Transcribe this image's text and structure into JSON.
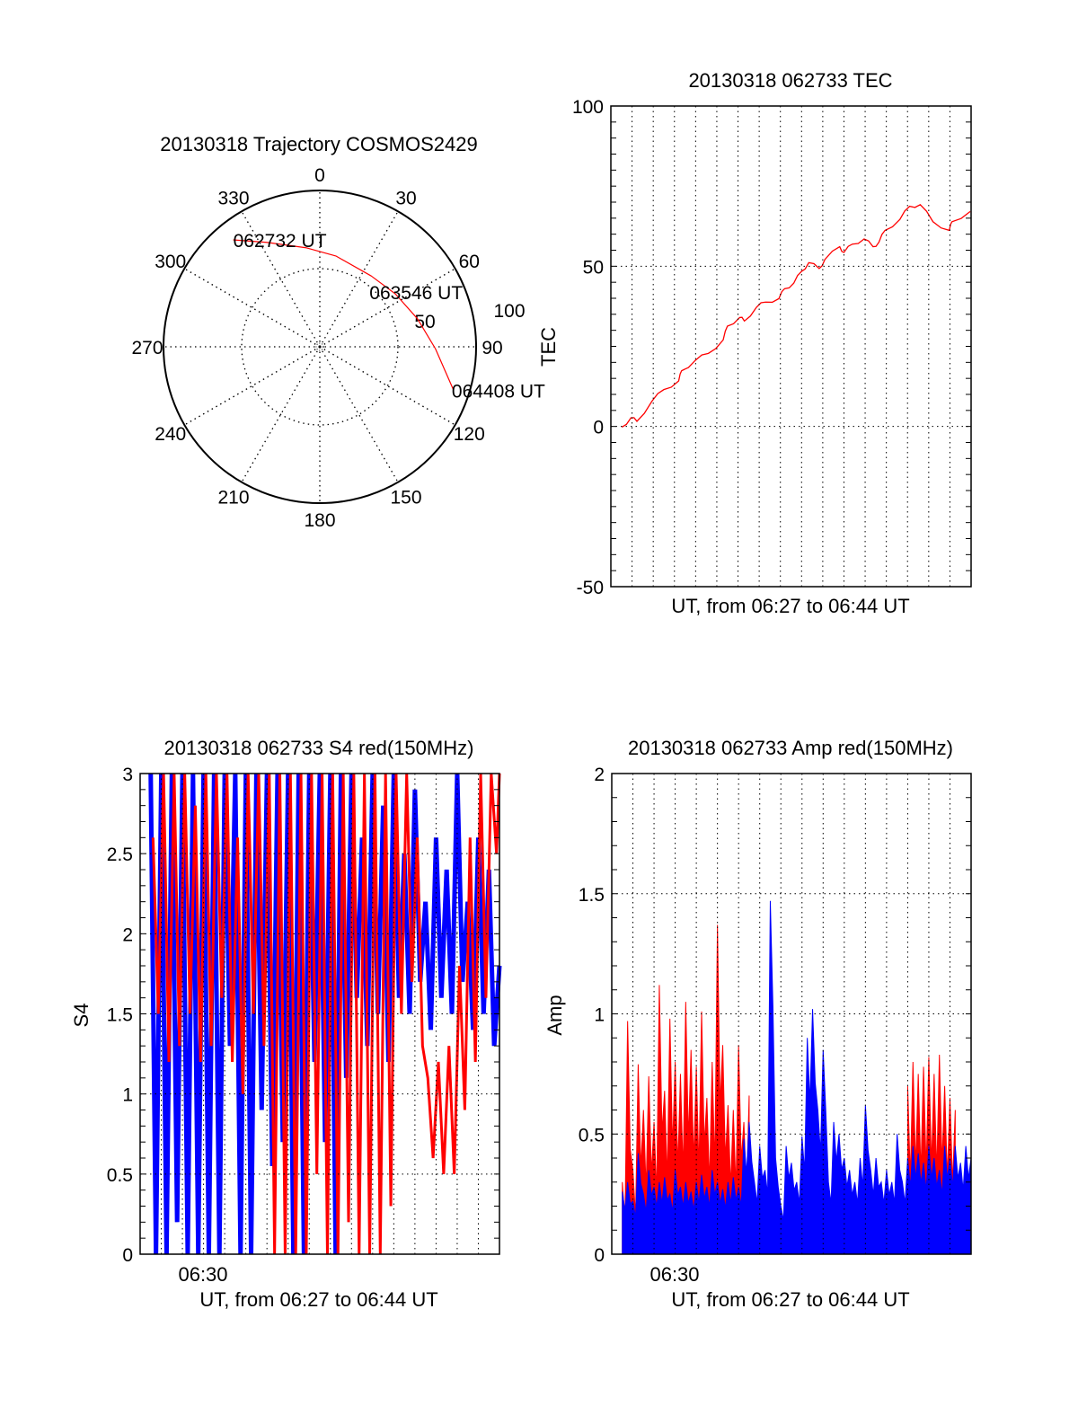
{
  "chart_data": [
    {
      "type": "polar",
      "title": "20130318 Trajectory COSMOS2429",
      "angle_labels": [
        "0",
        "30",
        "60",
        "90",
        "120",
        "150",
        "180",
        "210",
        "240",
        "270",
        "300",
        "330"
      ],
      "angles": [
        0,
        30,
        60,
        90,
        120,
        150,
        180,
        210,
        240,
        270,
        300,
        330
      ],
      "radial_labels": [
        "50",
        "100"
      ],
      "radial_values": [
        50,
        100
      ],
      "rlim": [
        0,
        100
      ],
      "trajectory_color": "#ff0000",
      "trajectory": [
        {
          "az": 321,
          "r": 88
        },
        {
          "az": 333,
          "r": 75
        },
        {
          "az": 352,
          "r": 64
        },
        {
          "az": 10,
          "r": 59
        },
        {
          "az": 36,
          "r": 56
        },
        {
          "az": 55,
          "r": 59
        },
        {
          "az": 74,
          "r": 65
        },
        {
          "az": 91,
          "r": 74
        },
        {
          "az": 108,
          "r": 90
        }
      ],
      "annotations": [
        {
          "text": "062732 UT",
          "az": 321,
          "r": 88
        },
        {
          "text": "063546 UT",
          "az": 36,
          "r": 56
        },
        {
          "text": "064408 UT",
          "az": 108,
          "r": 90
        }
      ]
    },
    {
      "type": "line",
      "title": "20130318 062733 TEC",
      "xlabel": "UT, from 06:27 to 06:44 UT",
      "ylabel": "TEC",
      "xlim_minutes_since_0627": [
        0,
        17
      ],
      "ylim": [
        -50,
        100
      ],
      "yticks": [
        -50,
        0,
        50,
        100
      ],
      "yticklabels": [
        "-50",
        "0",
        "50",
        "100"
      ],
      "minor_ytick": 5,
      "grid": true,
      "series": [
        {
          "name": "TEC",
          "color": "#ff0000",
          "x": [
            0.52,
            0.95,
            1.23,
            1.93,
            2.5,
            3.2,
            3.34,
            3.98,
            4.6,
            5.3,
            5.5,
            6.08,
            6.3,
            6.87,
            7.3,
            7.93,
            8.2,
            8.63,
            9.0,
            9.34,
            9.83,
            10.1,
            10.8,
            11.0,
            11.4,
            11.95,
            12.37,
            12.65,
            12.94,
            13.64,
            14.1,
            14.6,
            15.2,
            15.97,
            16.1,
            16.96
          ],
          "y": [
            -0.2,
            2.7,
            1.6,
            7.8,
            11.5,
            14.2,
            17.4,
            20.6,
            22.8,
            27,
            31.3,
            34,
            32.9,
            37.2,
            38.8,
            39.9,
            43,
            44.7,
            48.4,
            51.1,
            49.3,
            52.1,
            56.1,
            54.3,
            56.9,
            58.5,
            56.1,
            57.5,
            61.2,
            64.6,
            68.7,
            69.2,
            63.9,
            61.2,
            63.9,
            67.1
          ]
        }
      ]
    },
    {
      "type": "line",
      "title": "20130318 062733 S4 red(150MHz)",
      "xlabel": "UT, from 06:27 to 06:44 UT",
      "xticklabels": [
        "06:30"
      ],
      "xtick_minutes": [
        3
      ],
      "ylabel": "S4",
      "xlim_minutes_since_0627": [
        0,
        17
      ],
      "ylim": [
        0,
        3
      ],
      "yticks": [
        0,
        0.5,
        1,
        1.5,
        2,
        2.5,
        3
      ],
      "yticklabels": [
        "0",
        "0.5",
        "1",
        "1.5",
        "2",
        "2.5",
        "3"
      ],
      "minor_ytick": 0.1,
      "grid": true,
      "x_start": 0.5,
      "x_step": 0.25,
      "series": [
        {
          "name": "blue",
          "color": "#0000ff",
          "values": [
            3,
            0,
            3,
            0,
            3,
            0.2,
            3,
            0,
            3,
            0,
            3,
            0,
            3,
            0,
            3,
            1.3,
            3,
            0,
            3,
            0,
            3,
            0.9,
            3,
            0.55,
            3,
            0.7,
            3,
            0,
            3,
            0,
            3,
            1.2,
            3,
            0.7,
            3,
            0,
            3,
            1.1,
            3,
            1.6,
            2.6,
            1.3,
            3,
            1.5,
            2.8,
            1.2,
            3,
            1.6,
            2.5,
            1.5,
            2.9,
            1.7,
            2.2,
            1.4,
            2.6,
            1.6,
            2.4,
            1.5,
            3,
            1.7,
            2.2,
            1.4,
            2.6,
            1.5,
            2.4,
            1.3,
            1.8
          ]
        },
        {
          "name": "red",
          "color": "#ff0000",
          "values": [
            2.6,
            1.5,
            3,
            1.2,
            3,
            1.3,
            3,
            1.5,
            2.8,
            1.2,
            3,
            1.3,
            3,
            1.6,
            3,
            1.2,
            2.6,
            1.0,
            3,
            1.5,
            3,
            1.3,
            3,
            0,
            3,
            0,
            3,
            0,
            3,
            0,
            3,
            0.5,
            3,
            0,
            3,
            0,
            3,
            0.2,
            3,
            0,
            3,
            0,
            3,
            0,
            3,
            0.3,
            3,
            1.5,
            3,
            1.7,
            2.6,
            1.3,
            1.1,
            0.6,
            1.2,
            0.5,
            1.3,
            0.5,
            1.8,
            0.9,
            2.6,
            1.2,
            3,
            1.6,
            3,
            2.5,
            3
          ]
        }
      ]
    },
    {
      "type": "area",
      "title": "20130318 062733 Amp red(150MHz)",
      "xlabel": "UT, from 06:27 to 06:44 UT",
      "xticklabels": [
        "06:30"
      ],
      "xtick_minutes": [
        3
      ],
      "ylabel": "Amp",
      "xlim_minutes_since_0627": [
        0,
        17
      ],
      "ylim": [
        0,
        2
      ],
      "yticks": [
        0,
        0.5,
        1,
        1.5,
        2
      ],
      "yticklabels": [
        "0",
        "0.5",
        "1",
        "1.5",
        "2"
      ],
      "minor_ytick": 0.1,
      "grid": true,
      "series": [
        {
          "name": "red",
          "color": "#ff0000",
          "x_start": 0.5,
          "x_step": 0.25,
          "values": [
            0.3,
            0.97,
            0.35,
            0.79,
            0.6,
            0.74,
            0.55,
            1.12,
            0.68,
            0.98,
            0.8,
            0.75,
            1.05,
            0.85,
            0.78,
            1.01,
            0.65,
            0.8,
            1.37,
            0.87,
            0.62,
            0.6,
            0.87,
            0.55,
            0.66
          ]
        },
        {
          "name": "red-late",
          "color": "#ff0000",
          "x_start": 14.0,
          "x_step": 0.25,
          "values": [
            0.7,
            0.8,
            0.75,
            0.78,
            0.82,
            0.75,
            0.83,
            0.7,
            0.65,
            0.6
          ]
        },
        {
          "name": "blue",
          "color": "#0000ff",
          "x_start": 0.5,
          "x_step": 0.25,
          "values": [
            0.26,
            0.3,
            0.22,
            0.42,
            0.25,
            0.35,
            0.28,
            0.3,
            0.32,
            0.25,
            0.35,
            0.28,
            0.3,
            0.26,
            0.3,
            0.33,
            0.28,
            0.35,
            0.3,
            0.27,
            0.3,
            0.32,
            0.28,
            0.48,
            0.55,
            0.3,
            0.45,
            0.35,
            1.47,
            0.4,
            0.2,
            0.45,
            0.38,
            0.3,
            0.49,
            0.9,
            1.02,
            0.6,
            0.85,
            0.3,
            0.55,
            0.5,
            0.4,
            0.35,
            0.3,
            0.4,
            0.62,
            0.35,
            0.4,
            0.3,
            0.35,
            0.3,
            0.5,
            0.3,
            0.4,
            0.45,
            0.42,
            0.38,
            0.45,
            0.4,
            0.35,
            0.45,
            0.4,
            0.45,
            0.38,
            0.45,
            0.4
          ]
        }
      ]
    }
  ]
}
